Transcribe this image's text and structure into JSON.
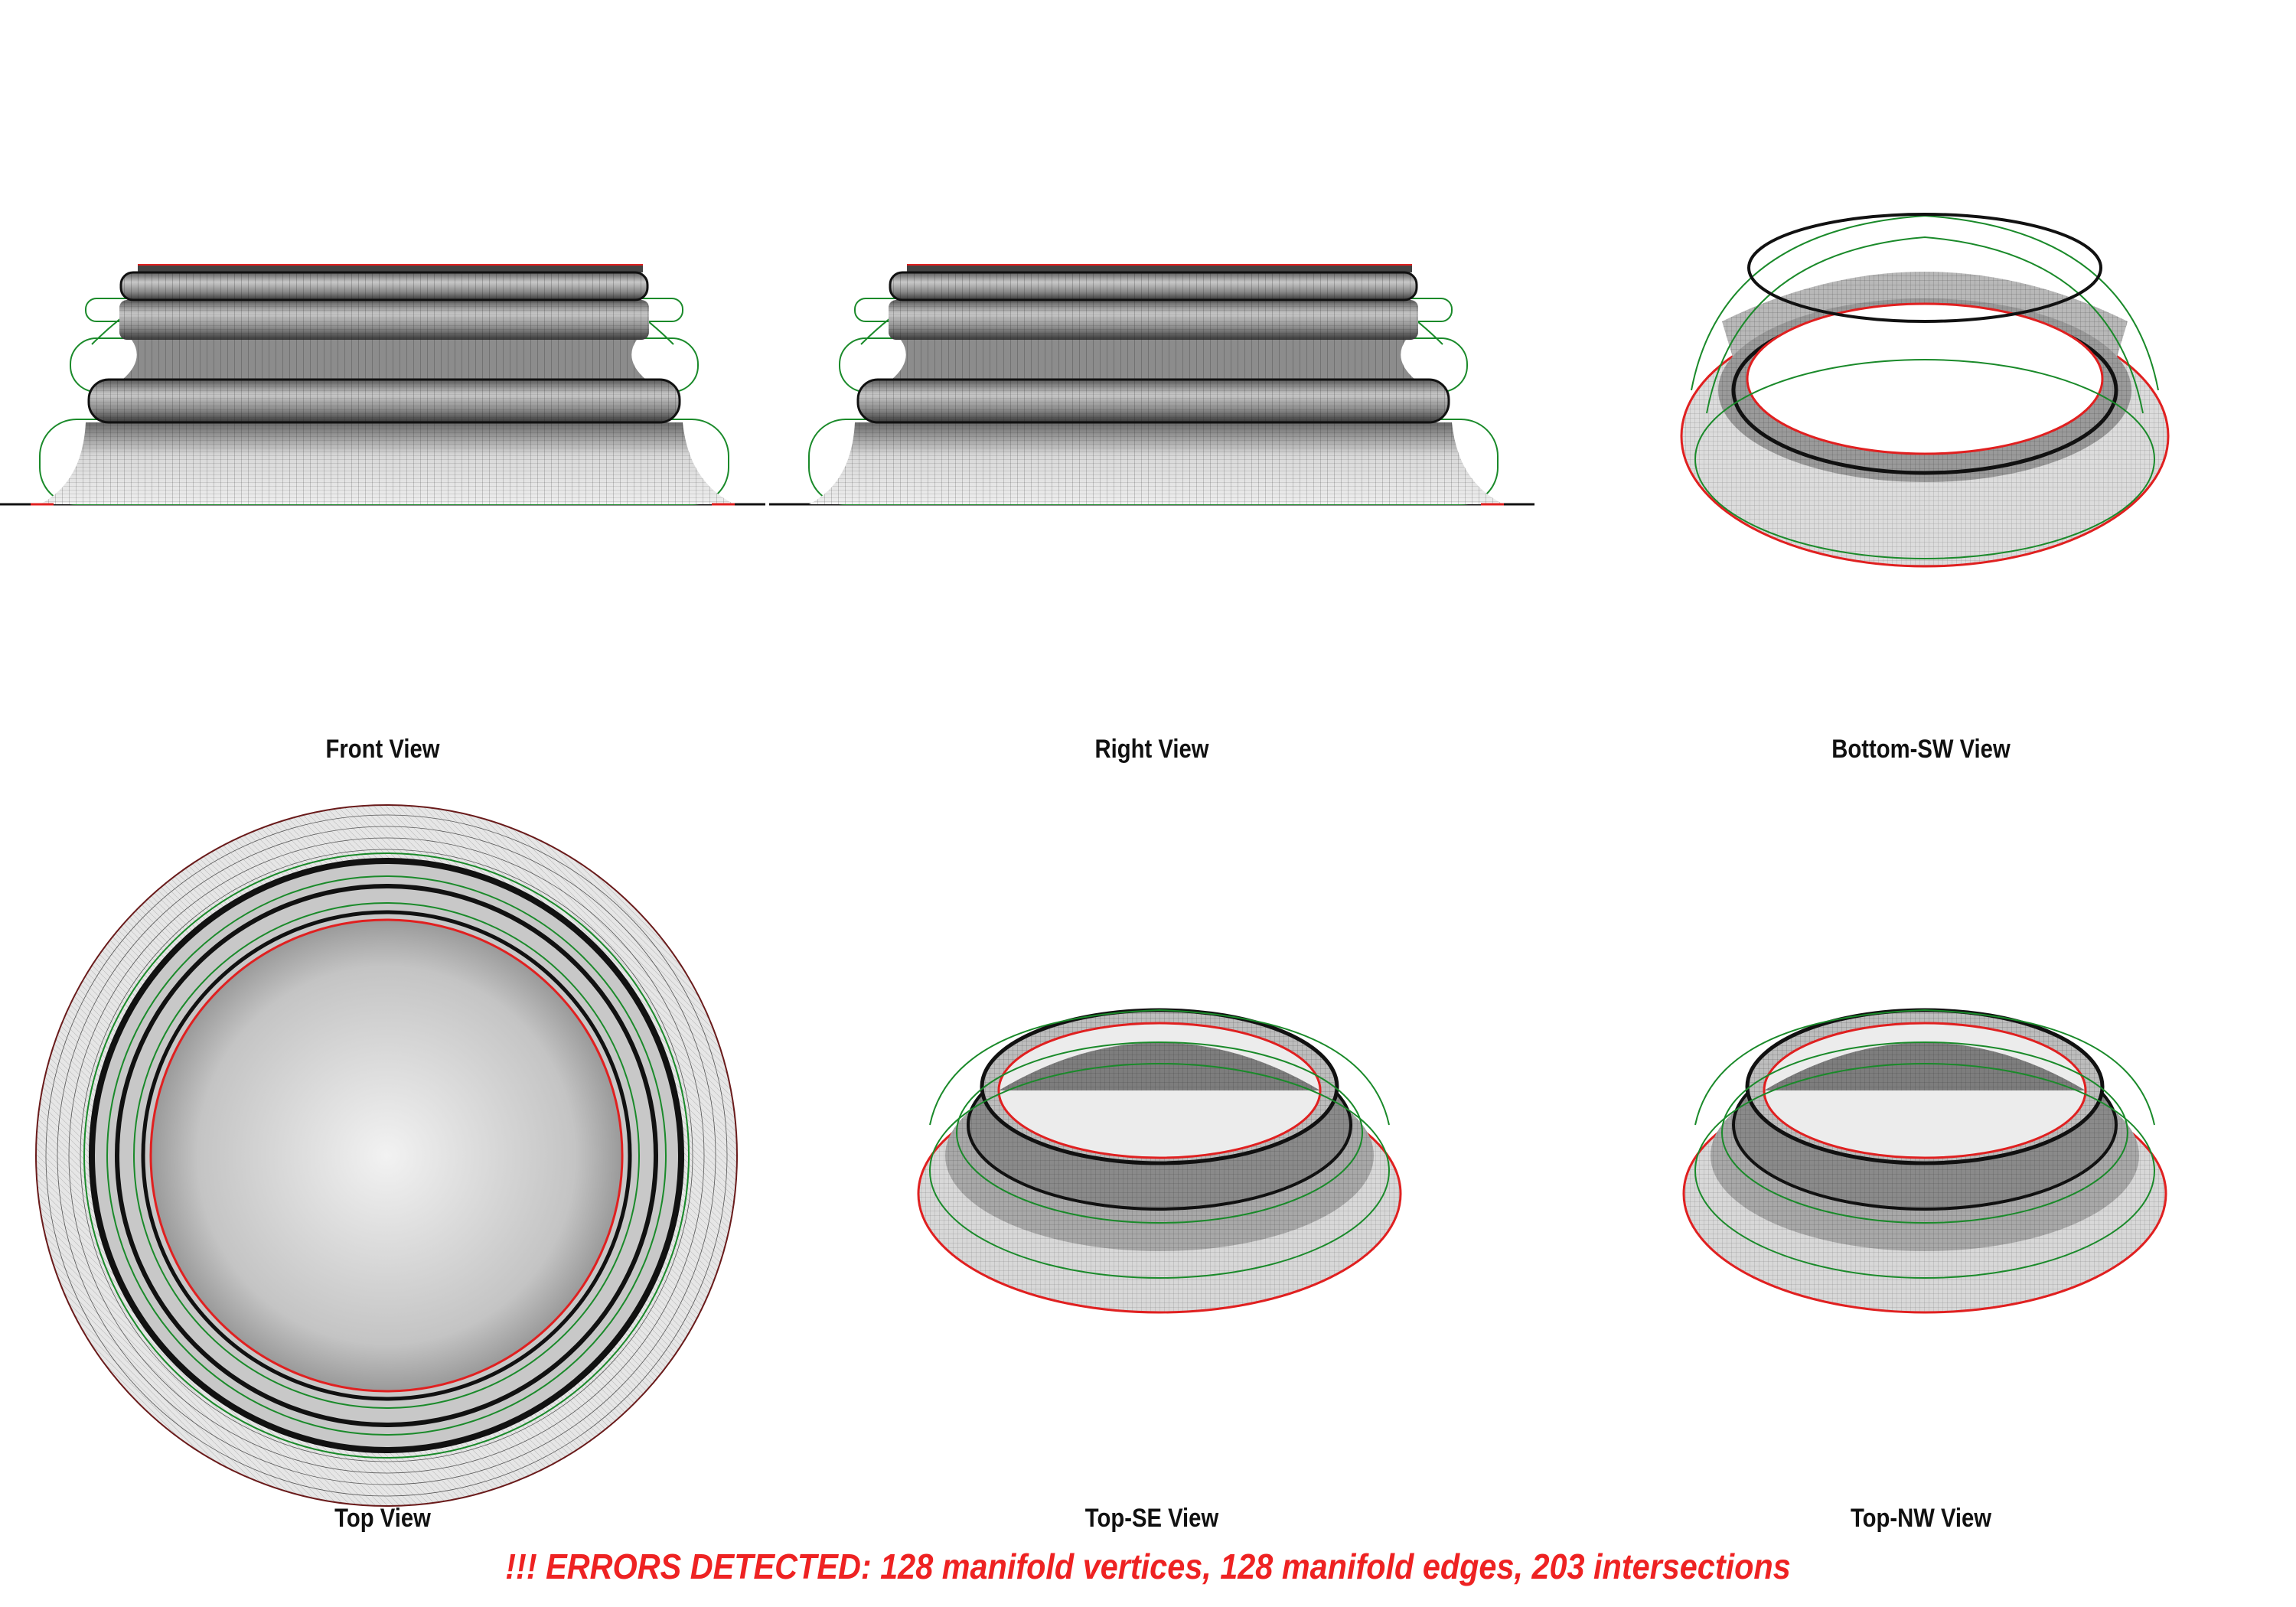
{
  "views": {
    "front": "Front View",
    "right": "Right View",
    "bottom_sw": "Bottom-SW View",
    "top": "Top View",
    "top_se": "Top-SE View",
    "top_nw": "Top-NW View"
  },
  "error_message": "!!! ERRORS DETECTED: 128 manifold vertices, 128 manifold edges, 203 intersections",
  "colors": {
    "mesh_fill": "#9a9a9a",
    "wire": "#111111",
    "outline_green": "#1a8a2a",
    "boundary_red": "#e02020",
    "error_text": "#ee2222"
  }
}
